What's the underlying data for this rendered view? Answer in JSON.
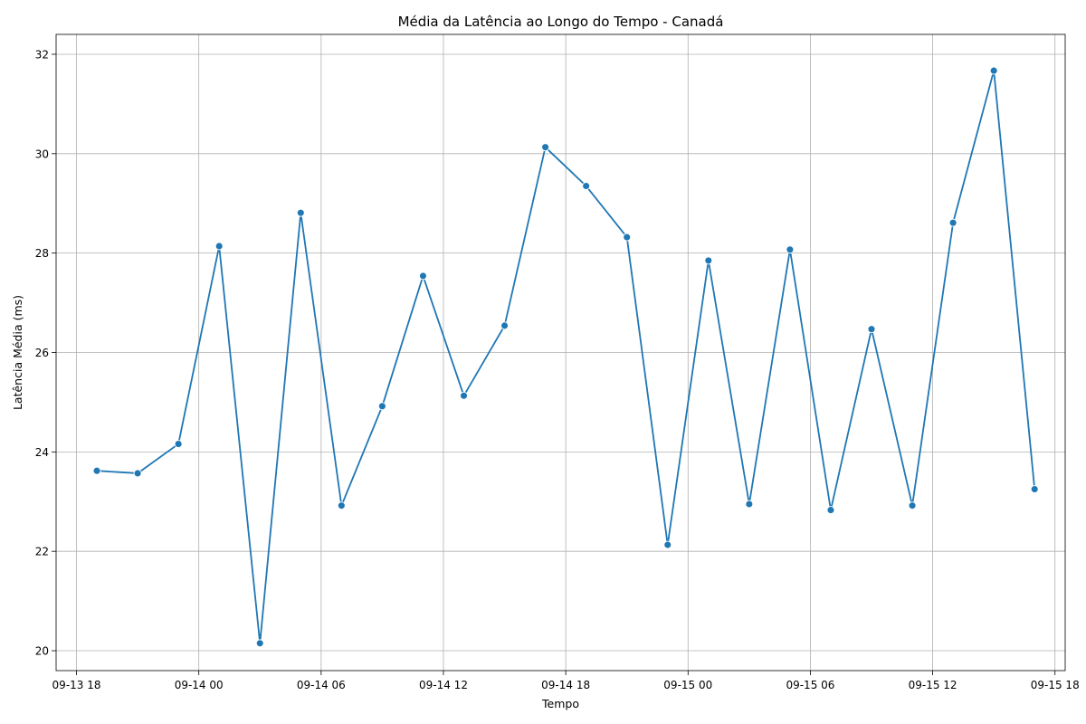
{
  "chart_data": {
    "type": "line",
    "title": "Média da Latência ao Longo do Tempo - Canadá",
    "xlabel": "Tempo",
    "ylabel": "Latência Média (ms)",
    "x_is_time": true,
    "xlim": [
      "2023-09-13T17:00",
      "2023-09-15T18:30"
    ],
    "ylim": [
      19.6,
      32.4
    ],
    "x_ticks": [
      {
        "value": "2023-09-13T18:00",
        "label": "09-13 18"
      },
      {
        "value": "2023-09-14T00:00",
        "label": "09-14 00"
      },
      {
        "value": "2023-09-14T06:00",
        "label": "09-14 06"
      },
      {
        "value": "2023-09-14T12:00",
        "label": "09-14 12"
      },
      {
        "value": "2023-09-14T18:00",
        "label": "09-14 18"
      },
      {
        "value": "2023-09-15T00:00",
        "label": "09-15 00"
      },
      {
        "value": "2023-09-15T06:00",
        "label": "09-15 06"
      },
      {
        "value": "2023-09-15T12:00",
        "label": "09-15 12"
      },
      {
        "value": "2023-09-15T18:00",
        "label": "09-15 18"
      }
    ],
    "y_ticks": [
      20,
      22,
      24,
      26,
      28,
      30,
      32
    ],
    "grid": true,
    "color": "#1f77b4",
    "series": [
      {
        "x": [
          "2023-09-13T19:00",
          "2023-09-13T21:00",
          "2023-09-13T23:00",
          "2023-09-14T01:00",
          "2023-09-14T03:00",
          "2023-09-14T05:00",
          "2023-09-14T07:00",
          "2023-09-14T09:00",
          "2023-09-14T11:00",
          "2023-09-14T13:00",
          "2023-09-14T15:00",
          "2023-09-14T17:00",
          "2023-09-14T19:00",
          "2023-09-14T21:00",
          "2023-09-14T23:00",
          "2023-09-15T01:00",
          "2023-09-15T03:00",
          "2023-09-15T05:00",
          "2023-09-15T07:00",
          "2023-09-15T09:00",
          "2023-09-15T11:00",
          "2023-09-15T13:00",
          "2023-09-15T15:00",
          "2023-09-15T17:00"
        ],
        "values": [
          23.62,
          23.57,
          24.16,
          28.14,
          20.15,
          28.81,
          22.92,
          24.92,
          27.54,
          25.13,
          26.54,
          30.13,
          29.35,
          28.32,
          22.13,
          27.85,
          22.95,
          28.07,
          22.83,
          26.47,
          22.92,
          28.61,
          31.67,
          23.25
        ]
      }
    ]
  }
}
